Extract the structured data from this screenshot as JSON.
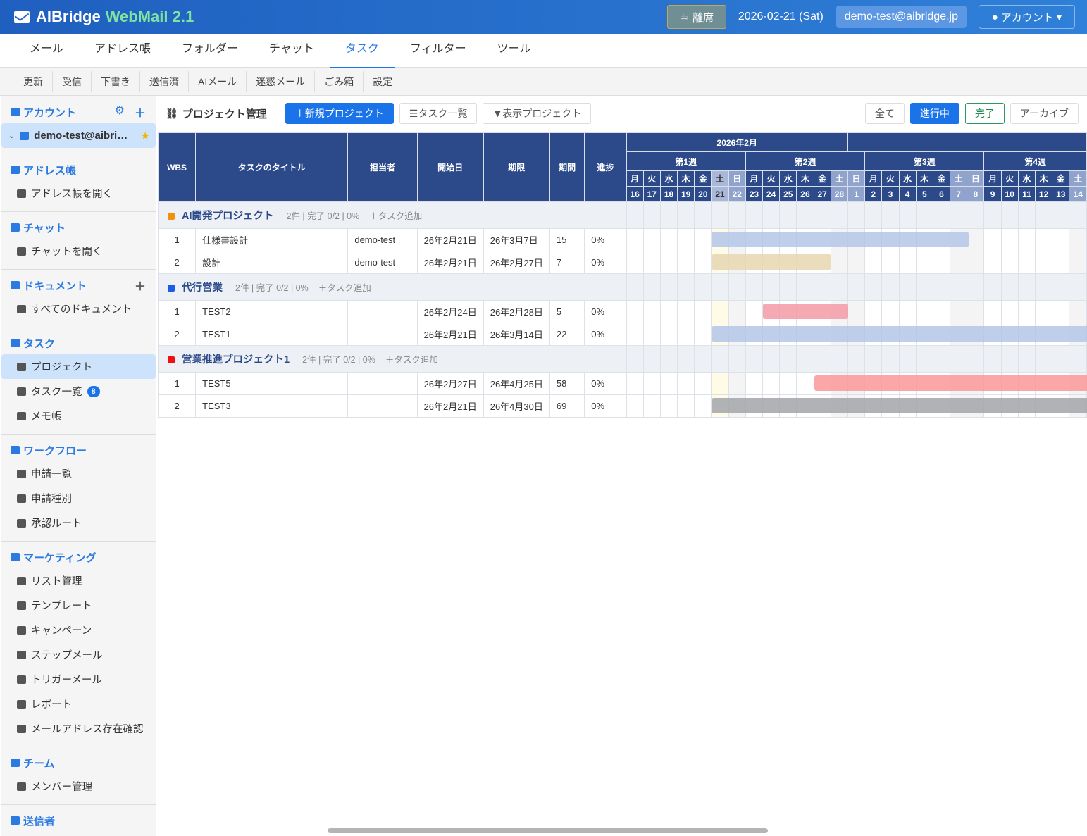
{
  "header": {
    "brand": "AIBridge",
    "brand_accent": "WebMail 2.1",
    "away_label": "離席",
    "date": "2026-02-21 (Sat)",
    "email": "demo-test@aibridge.jp",
    "account_label": "アカウント"
  },
  "nav": [
    "メール",
    "アドレス帳",
    "フォルダー",
    "チャット",
    "タスク",
    "フィルター",
    "ツール"
  ],
  "nav_active": 4,
  "toolbar": [
    "更新",
    "受信",
    "下書き",
    "送信済",
    "AIメール",
    "迷惑メール",
    "ごみ箱",
    "設定"
  ],
  "sidebar": {
    "account_header": "アカウント",
    "account_item": "demo-test@aibri…",
    "sections": [
      {
        "title": "アドレス帳",
        "items": [
          "アドレス帳を開く"
        ]
      },
      {
        "title": "チャット",
        "items": [
          "チャットを開く"
        ]
      },
      {
        "title": "ドキュメント",
        "items": [
          "すべてのドキュメント"
        ]
      },
      {
        "title": "タスク",
        "items": [
          "プロジェクト",
          "タスク一覧",
          "メモ帳"
        ]
      },
      {
        "title": "ワークフロー",
        "items": [
          "申請一覧",
          "申請種別",
          "承認ルート"
        ]
      },
      {
        "title": "マーケティング",
        "items": [
          "リスト管理",
          "テンプレート",
          "キャンペーン",
          "ステップメール",
          "トリガーメール",
          "レポート",
          "メールアドレス存在確認"
        ]
      },
      {
        "title": "チーム",
        "items": [
          "メンバー管理"
        ]
      },
      {
        "title": "送信者",
        "items": []
      }
    ],
    "task_count_badge": "8"
  },
  "page": {
    "title": "プロジェクト管理",
    "new_project": "新規プロジェクト",
    "task_list": "タスク一覧",
    "display_projects": "表示プロジェクト",
    "filters": [
      "全て",
      "進行中",
      "完了",
      "アーカイブ"
    ],
    "active_filter": "進行中"
  },
  "gantt": {
    "columns": [
      "WBS",
      "タスクのタイトル",
      "担当者",
      "開始日",
      "期限",
      "期間",
      "進捗"
    ],
    "month_label": "2026年2月",
    "weeks": [
      "第1週",
      "第2週",
      "第3週",
      "第4週"
    ],
    "weekdays": [
      "月",
      "火",
      "水",
      "木",
      "金",
      "土",
      "日"
    ],
    "days": [
      16,
      17,
      18,
      19,
      20,
      21,
      22,
      23,
      24,
      25,
      26,
      27,
      28,
      1,
      2,
      3,
      4,
      5,
      6,
      7,
      8,
      9,
      10,
      11,
      12,
      13,
      14
    ],
    "today": "2026-02-21",
    "add_task_label": "＋タスク追加",
    "groups": [
      {
        "name": "AI開発プロジェクト",
        "meta": "2件 | 完了 0/2 | 0%",
        "color": "#f0900c",
        "tasks": [
          {
            "wbs": "1",
            "title": "仕様書設計",
            "assignee": "demo-test",
            "start": "26年2月21日",
            "end": "26年3月7日",
            "duration": "15",
            "progress": "0%",
            "bar_color": "#b3c5e8"
          },
          {
            "wbs": "2",
            "title": "設計",
            "assignee": "demo-test",
            "start": "26年2月21日",
            "end": "26年2月27日",
            "duration": "7",
            "progress": "0%",
            "bar_color": "#e8d6b0"
          }
        ]
      },
      {
        "name": "代行営業",
        "meta": "2件 | 完了 0/2 | 0%",
        "color": "#1a5be8",
        "tasks": [
          {
            "wbs": "1",
            "title": "TEST2",
            "assignee": "",
            "start": "26年2月24日",
            "end": "26年2月28日",
            "duration": "5",
            "progress": "0%",
            "bar_color": "#f39aa6"
          },
          {
            "wbs": "2",
            "title": "TEST1",
            "assignee": "",
            "start": "26年2月21日",
            "end": "26年3月14日",
            "duration": "22",
            "progress": "0%",
            "bar_color": "#b3c5e8"
          }
        ]
      },
      {
        "name": "営業推進プロジェクト1",
        "meta": "2件 | 完了 0/2 | 0%",
        "color": "#ee1111",
        "tasks": [
          {
            "wbs": "1",
            "title": "TEST5",
            "assignee": "",
            "start": "26年2月27日",
            "end": "26年4月25日",
            "duration": "58",
            "progress": "0%",
            "bar_color": "#fa9898"
          },
          {
            "wbs": "2",
            "title": "TEST3",
            "assignee": "",
            "start": "26年2月21日",
            "end": "26年4月30日",
            "duration": "69",
            "progress": "0%",
            "bar_color": "#a3a4a9"
          }
        ]
      }
    ]
  }
}
